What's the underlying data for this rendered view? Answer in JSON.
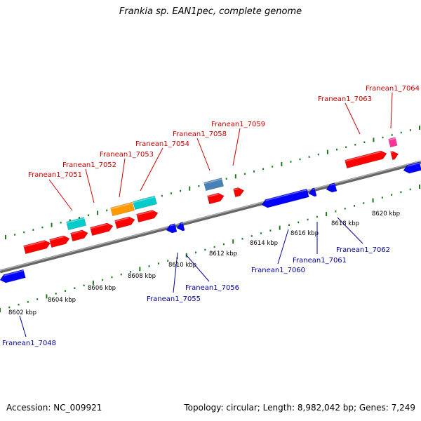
{
  "title": "Frankia sp. EAN1pec, complete genome",
  "footer": {
    "accession": "Accession: NC_009921",
    "topology": "Topology: circular; Length: 8,982,042 bp; Genes: 7,249"
  },
  "colors": {
    "backbone": "#808080",
    "tick": "#1a7a1a",
    "forward_label": "#cc0000",
    "reverse_label": "#000099",
    "red": "#ff0000",
    "cyan": "#00cccc",
    "orange": "#ff9900",
    "steelblue": "#4682b4",
    "magenta": "#ff3399",
    "blue": "#0000ff"
  },
  "scale_labels": [
    "8602 kbp",
    "8604 kbp",
    "8606 kbp",
    "8608 kbp",
    "8610 kbp",
    "8612 kbp",
    "8614 kbp",
    "8616 kbp",
    "8618 kbp",
    "8620 kbp"
  ],
  "gene_labels": [
    {
      "text": "Franean1_7051",
      "strand": "forward"
    },
    {
      "text": "Franean1_7052",
      "strand": "forward"
    },
    {
      "text": "Franean1_7053",
      "strand": "forward"
    },
    {
      "text": "Franean1_7054",
      "strand": "forward"
    },
    {
      "text": "Franean1_7058",
      "strand": "forward"
    },
    {
      "text": "Franean1_7059",
      "strand": "forward"
    },
    {
      "text": "Franean1_7063",
      "strand": "forward"
    },
    {
      "text": "Franean1_7064",
      "strand": "forward"
    },
    {
      "text": "Franean1_7048",
      "strand": "reverse"
    },
    {
      "text": "Franean1_7055",
      "strand": "reverse"
    },
    {
      "text": "Franean1_7056",
      "strand": "reverse"
    },
    {
      "text": "Franean1_7060",
      "strand": "reverse"
    },
    {
      "text": "Franean1_7061",
      "strand": "reverse"
    },
    {
      "text": "Franean1_7062",
      "strand": "reverse"
    }
  ]
}
